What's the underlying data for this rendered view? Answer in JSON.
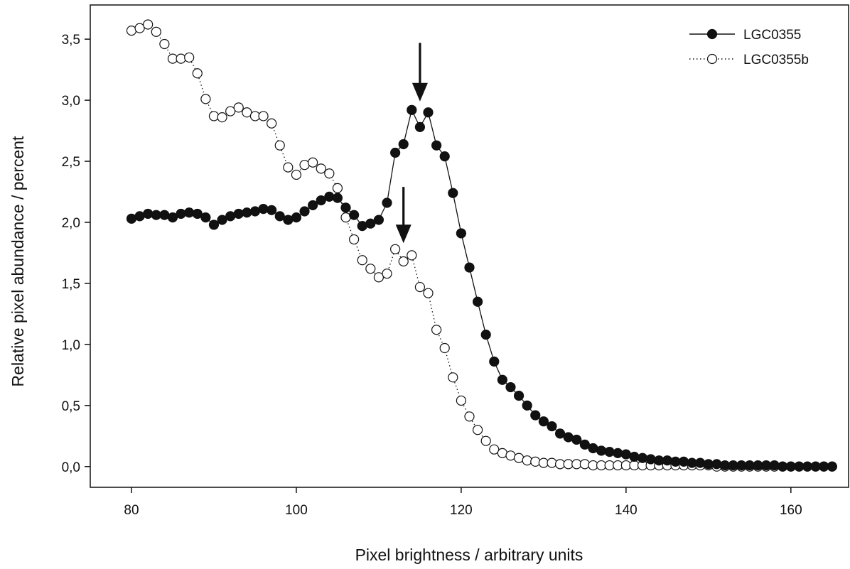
{
  "chart_data": {
    "type": "line",
    "xlabel": "Pixel brightness / arbitrary units",
    "ylabel": "Relative pixel abundance / percent",
    "xlim": [
      75,
      167
    ],
    "ylim": [
      -0.17,
      3.78
    ],
    "xticks": [
      "80",
      "100",
      "120",
      "140",
      "160"
    ],
    "yticks": [
      "0,0",
      "0,5",
      "1,0",
      "1,5",
      "2,0",
      "2,5",
      "3,0",
      "3,5"
    ],
    "grid": false,
    "legend_position": "top-right",
    "x": [
      80,
      81,
      82,
      83,
      84,
      85,
      86,
      87,
      88,
      89,
      90,
      91,
      92,
      93,
      94,
      95,
      96,
      97,
      98,
      99,
      100,
      101,
      102,
      103,
      104,
      105,
      106,
      107,
      108,
      109,
      110,
      111,
      112,
      113,
      114,
      115,
      116,
      117,
      118,
      119,
      120,
      121,
      122,
      123,
      124,
      125,
      126,
      127,
      128,
      129,
      130,
      131,
      132,
      133,
      134,
      135,
      136,
      137,
      138,
      139,
      140,
      141,
      142,
      143,
      144,
      145,
      146,
      147,
      148,
      149,
      150,
      151,
      152,
      153,
      154,
      155,
      156,
      157,
      158,
      159,
      160,
      161,
      162,
      163,
      164,
      165
    ],
    "series": [
      {
        "name": "LGC0355",
        "marker": "filled-circle",
        "line": "solid",
        "values": [
          2.03,
          2.05,
          2.07,
          2.06,
          2.06,
          2.04,
          2.07,
          2.08,
          2.07,
          2.04,
          1.98,
          2.02,
          2.05,
          2.07,
          2.08,
          2.09,
          2.11,
          2.1,
          2.05,
          2.02,
          2.04,
          2.09,
          2.14,
          2.18,
          2.21,
          2.2,
          2.12,
          2.06,
          1.97,
          1.99,
          2.02,
          2.16,
          2.57,
          2.64,
          2.92,
          2.78,
          2.9,
          2.63,
          2.54,
          2.24,
          1.91,
          1.63,
          1.35,
          1.08,
          0.86,
          0.71,
          0.65,
          0.58,
          0.5,
          0.42,
          0.37,
          0.33,
          0.27,
          0.24,
          0.22,
          0.18,
          0.15,
          0.13,
          0.12,
          0.11,
          0.1,
          0.08,
          0.07,
          0.06,
          0.05,
          0.05,
          0.04,
          0.04,
          0.03,
          0.03,
          0.02,
          0.02,
          0.01,
          0.01,
          0.01,
          0.01,
          0.01,
          0.01,
          0.01,
          0.0,
          0.0,
          0.0,
          0.0,
          0.0,
          0.0,
          0.0
        ]
      },
      {
        "name": "LGC0355b",
        "marker": "open-circle",
        "line": "dotted",
        "values": [
          3.57,
          3.59,
          3.62,
          3.56,
          3.46,
          3.34,
          3.34,
          3.35,
          3.22,
          3.01,
          2.87,
          2.86,
          2.91,
          2.94,
          2.9,
          2.87,
          2.87,
          2.81,
          2.63,
          2.45,
          2.39,
          2.47,
          2.49,
          2.44,
          2.4,
          2.28,
          2.04,
          1.86,
          1.69,
          1.62,
          1.55,
          1.58,
          1.78,
          1.68,
          1.73,
          1.47,
          1.42,
          1.12,
          0.97,
          0.73,
          0.54,
          0.41,
          0.3,
          0.21,
          0.14,
          0.11,
          0.09,
          0.07,
          0.05,
          0.04,
          0.03,
          0.03,
          0.02,
          0.02,
          0.02,
          0.02,
          0.01,
          0.01,
          0.01,
          0.01,
          0.01,
          0.01,
          0.01,
          0.01,
          0.01,
          0.01,
          0.01,
          0.01,
          0.01,
          0.01,
          0.01,
          0.0,
          0.0,
          0.0,
          0.0,
          0.0,
          0.0,
          0.0,
          0.0,
          0.0,
          0.0,
          0.0,
          0.0,
          0.0,
          0.0,
          0.0
        ]
      }
    ],
    "annotations": [
      {
        "type": "arrow",
        "x": 115,
        "y_tail": 3.47,
        "y_head": 2.99
      },
      {
        "type": "arrow",
        "x": 113,
        "y_tail": 2.29,
        "y_head": 1.83
      }
    ]
  }
}
